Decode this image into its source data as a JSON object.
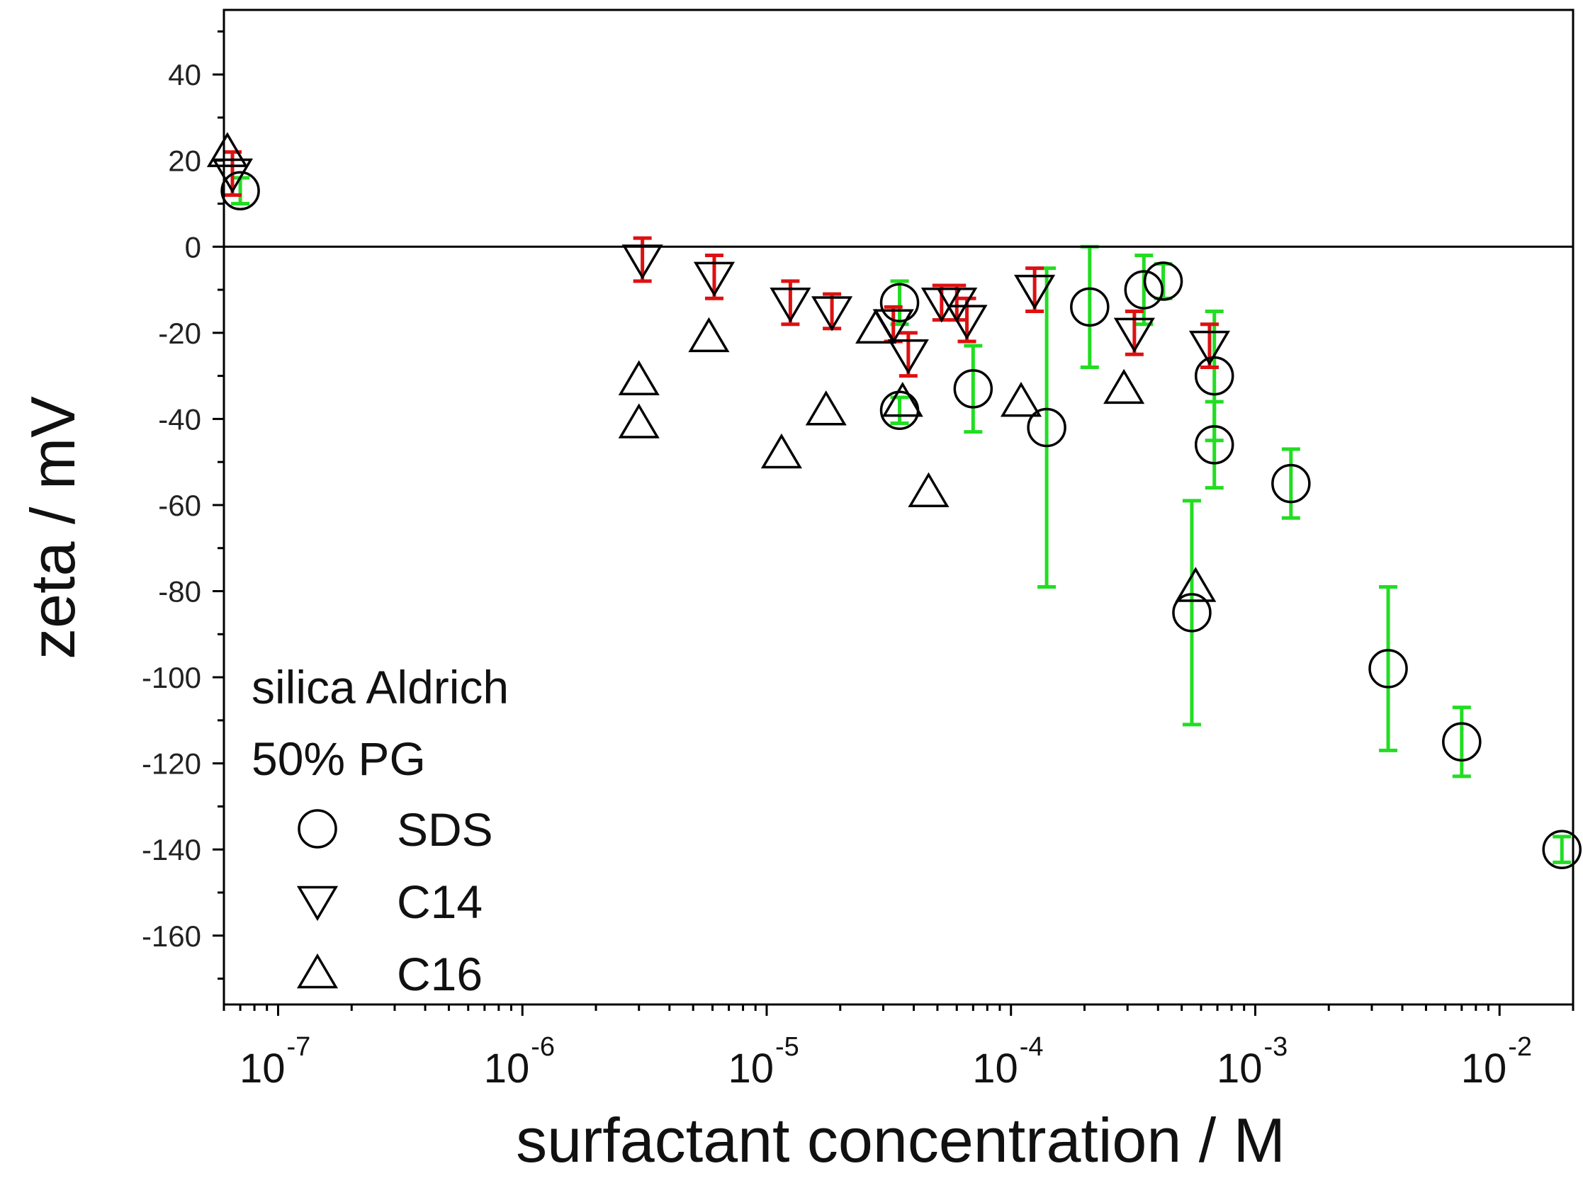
{
  "chart_data": {
    "type": "scatter",
    "title": "",
    "xlabel": "surfactant concentration / M",
    "ylabel": "zeta / mV",
    "xscale": "log",
    "xlim": [
      6e-08,
      0.02
    ],
    "ylim": [
      -176,
      55
    ],
    "x_ticks": [
      {
        "value": 1e-07,
        "base": "10",
        "exp": "-7"
      },
      {
        "value": 1e-06,
        "base": "10",
        "exp": "-6"
      },
      {
        "value": 1e-05,
        "base": "10",
        "exp": "-5"
      },
      {
        "value": 0.0001,
        "base": "10",
        "exp": "-4"
      },
      {
        "value": 0.001,
        "base": "10",
        "exp": "-3"
      },
      {
        "value": 0.01,
        "base": "10",
        "exp": "-2"
      }
    ],
    "y_ticks": [
      40,
      20,
      0,
      -20,
      -40,
      -60,
      -80,
      -100,
      -120,
      -140,
      -160
    ],
    "y_tick_labels": [
      "40",
      "20",
      "0",
      "-20",
      "-40",
      "-60",
      "-80",
      "-100",
      "-120",
      "-140",
      "-160"
    ],
    "zero_line": 0,
    "annotation": [
      "silica Aldrich",
      "50% PG"
    ],
    "legend_position": "bottom-left",
    "series": [
      {
        "name": "SDS",
        "marker": "circle",
        "error_color": "#22dd22",
        "points": [
          {
            "x": 7e-08,
            "y": 13,
            "err": 3
          },
          {
            "x": 3.5e-05,
            "y": -13,
            "err": 5
          },
          {
            "x": 3.5e-05,
            "y": -38,
            "err": 3
          },
          {
            "x": 7e-05,
            "y": -33,
            "err": 10
          },
          {
            "x": 0.00014,
            "y": -42,
            "err": 37
          },
          {
            "x": 0.00021,
            "y": -14,
            "err": 14
          },
          {
            "x": 0.00035,
            "y": -10,
            "err": 8
          },
          {
            "x": 0.00042,
            "y": -8,
            "err": 4
          },
          {
            "x": 0.00055,
            "y": -85,
            "err": 26
          },
          {
            "x": 0.00068,
            "y": -30,
            "err": 15
          },
          {
            "x": 0.00068,
            "y": -46,
            "err": 10
          },
          {
            "x": 0.0014,
            "y": -55,
            "err": 8
          },
          {
            "x": 0.0035,
            "y": -98,
            "err": 19
          },
          {
            "x": 0.007,
            "y": -115,
            "err": 8
          },
          {
            "x": 0.018,
            "y": -140,
            "err": 3
          }
        ]
      },
      {
        "name": "C14",
        "marker": "triangle-down",
        "error_color": "#dd1111",
        "points": [
          {
            "x": 6.5e-08,
            "y": 17,
            "err": 5
          },
          {
            "x": 3.1e-06,
            "y": -3,
            "err": 5
          },
          {
            "x": 6.1e-06,
            "y": -7,
            "err": 5
          },
          {
            "x": 1.25e-05,
            "y": -13,
            "err": 5
          },
          {
            "x": 1.85e-05,
            "y": -15,
            "err": 4
          },
          {
            "x": 3.3e-05,
            "y": -18,
            "err": 4
          },
          {
            "x": 3.8e-05,
            "y": -25,
            "err": 5
          },
          {
            "x": 5.2e-05,
            "y": -13,
            "err": 4
          },
          {
            "x": 6e-05,
            "y": -13,
            "err": 4
          },
          {
            "x": 6.6e-05,
            "y": -17,
            "err": 5
          },
          {
            "x": 0.000125,
            "y": -10,
            "err": 5
          },
          {
            "x": 0.00032,
            "y": -20,
            "err": 5
          },
          {
            "x": 0.00065,
            "y": -23,
            "err": 5
          }
        ]
      },
      {
        "name": "C16",
        "marker": "triangle-up",
        "error_color": "#22dd22",
        "points": [
          {
            "x": 6.2e-08,
            "y": 22,
            "err": 0
          },
          {
            "x": 3e-06,
            "y": -31,
            "err": 0
          },
          {
            "x": 3e-06,
            "y": -41,
            "err": 0
          },
          {
            "x": 5.8e-06,
            "y": -21,
            "err": 0
          },
          {
            "x": 1.15e-05,
            "y": -48,
            "err": 0
          },
          {
            "x": 1.75e-05,
            "y": -38,
            "err": 0
          },
          {
            "x": 2.8e-05,
            "y": -19,
            "err": 0
          },
          {
            "x": 3.6e-05,
            "y": -36,
            "err": 0
          },
          {
            "x": 4.6e-05,
            "y": -57,
            "err": 0
          },
          {
            "x": 0.00011,
            "y": -36,
            "err": 0
          },
          {
            "x": 0.00029,
            "y": -33,
            "err": 0
          },
          {
            "x": 0.00057,
            "y": -79,
            "err": 0
          }
        ]
      }
    ]
  }
}
